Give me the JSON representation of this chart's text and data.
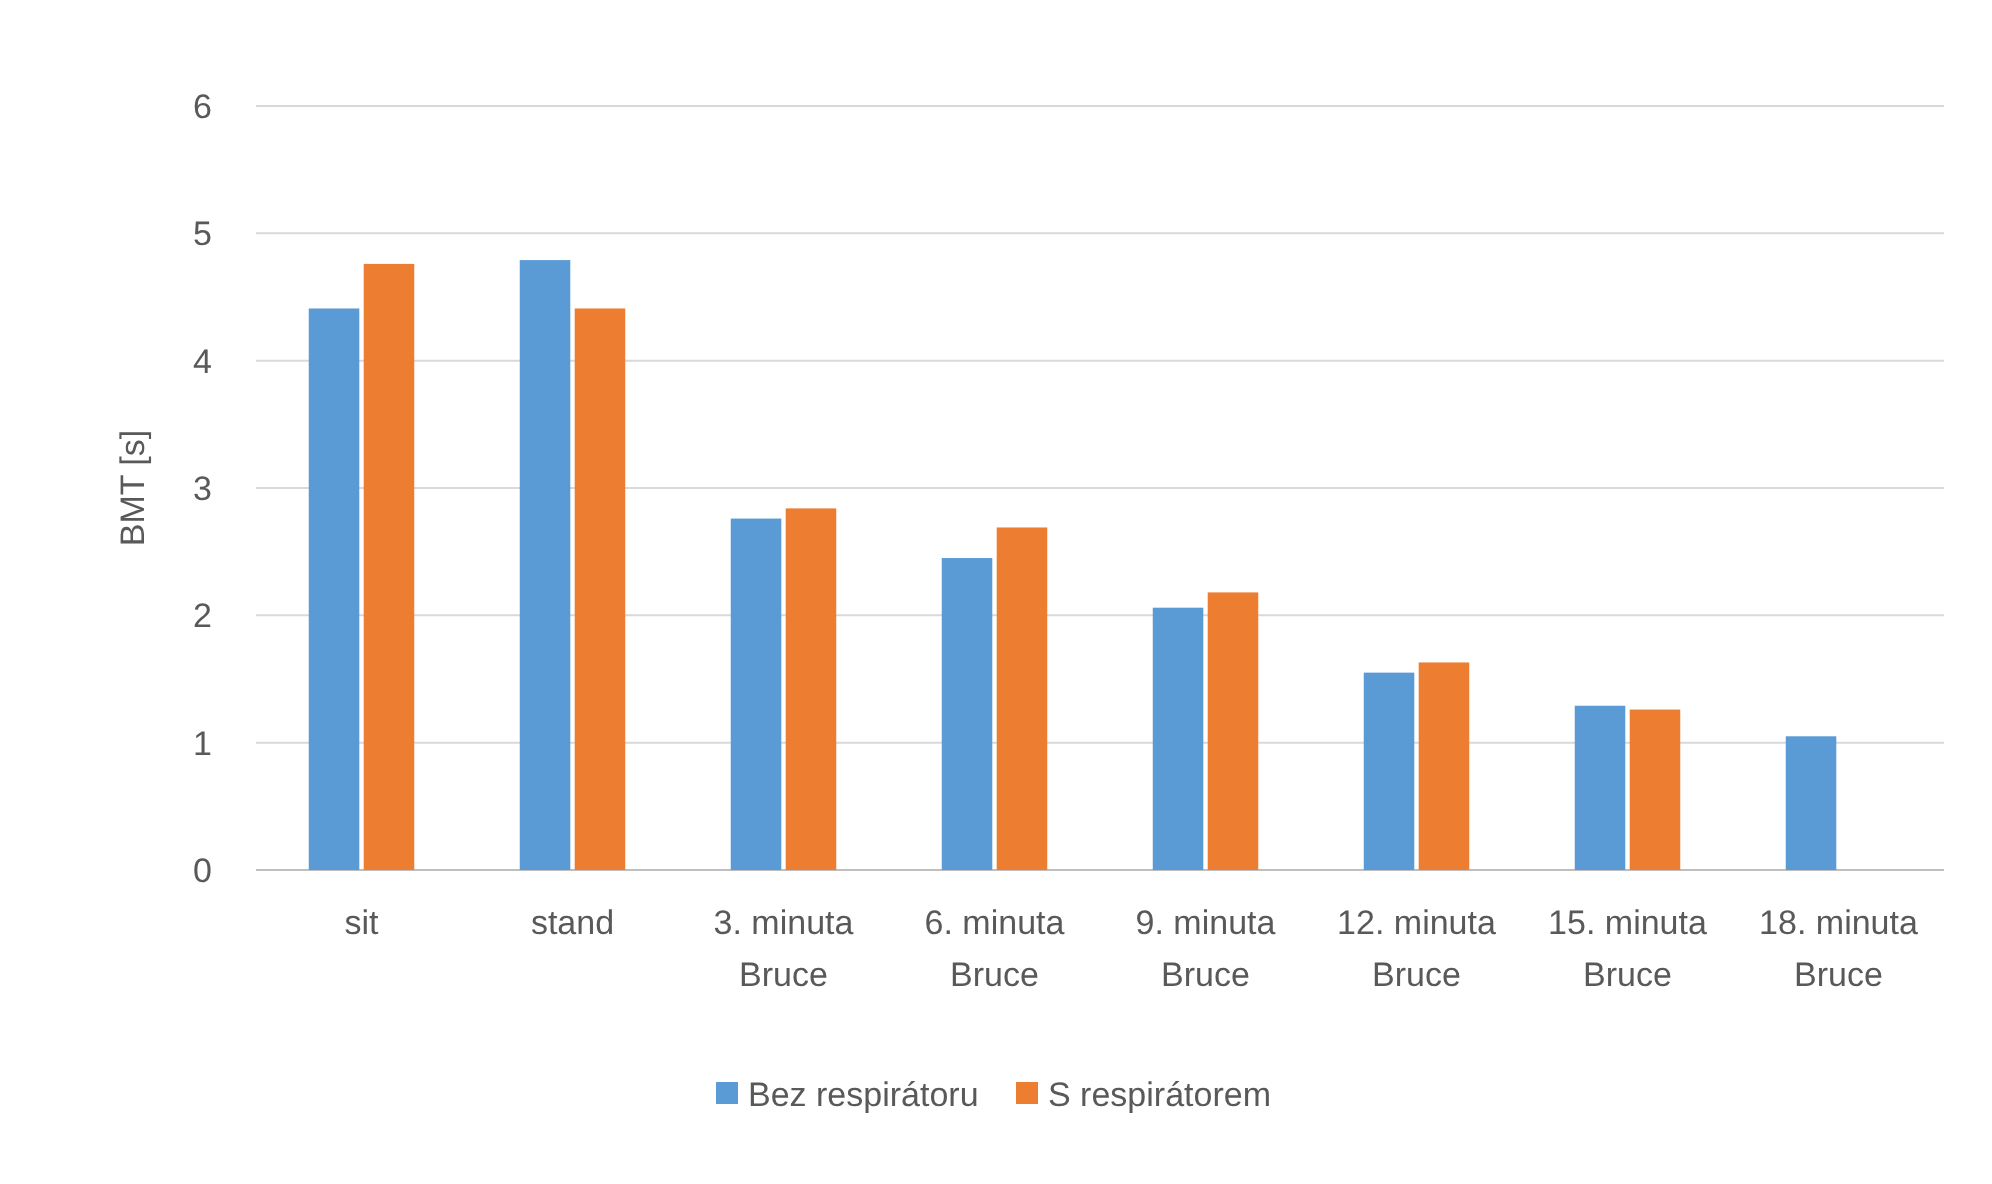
{
  "chart_data": {
    "type": "bar",
    "ylabel": "BMT [s]",
    "categories": [
      "sit",
      "stand",
      "3. minuta\nBruce",
      "6. minuta\nBruce",
      "9. minuta\nBruce",
      "12. minuta\nBruce",
      "15. minuta\nBruce",
      "18. minuta\nBruce"
    ],
    "series": [
      {
        "name": "Bez respirátoru",
        "color": "#5b9bd5",
        "values": [
          4.41,
          4.79,
          2.76,
          2.45,
          2.06,
          1.55,
          1.29,
          1.05
        ]
      },
      {
        "name": "S respirátorem",
        "color": "#ed7d31",
        "values": [
          4.76,
          4.41,
          2.84,
          2.69,
          2.18,
          1.63,
          1.26,
          null
        ]
      }
    ],
    "ylim": [
      0,
      6
    ],
    "yticks": [
      0,
      1,
      2,
      3,
      4,
      5,
      6
    ],
    "grid": "y",
    "legend": "bottom"
  }
}
